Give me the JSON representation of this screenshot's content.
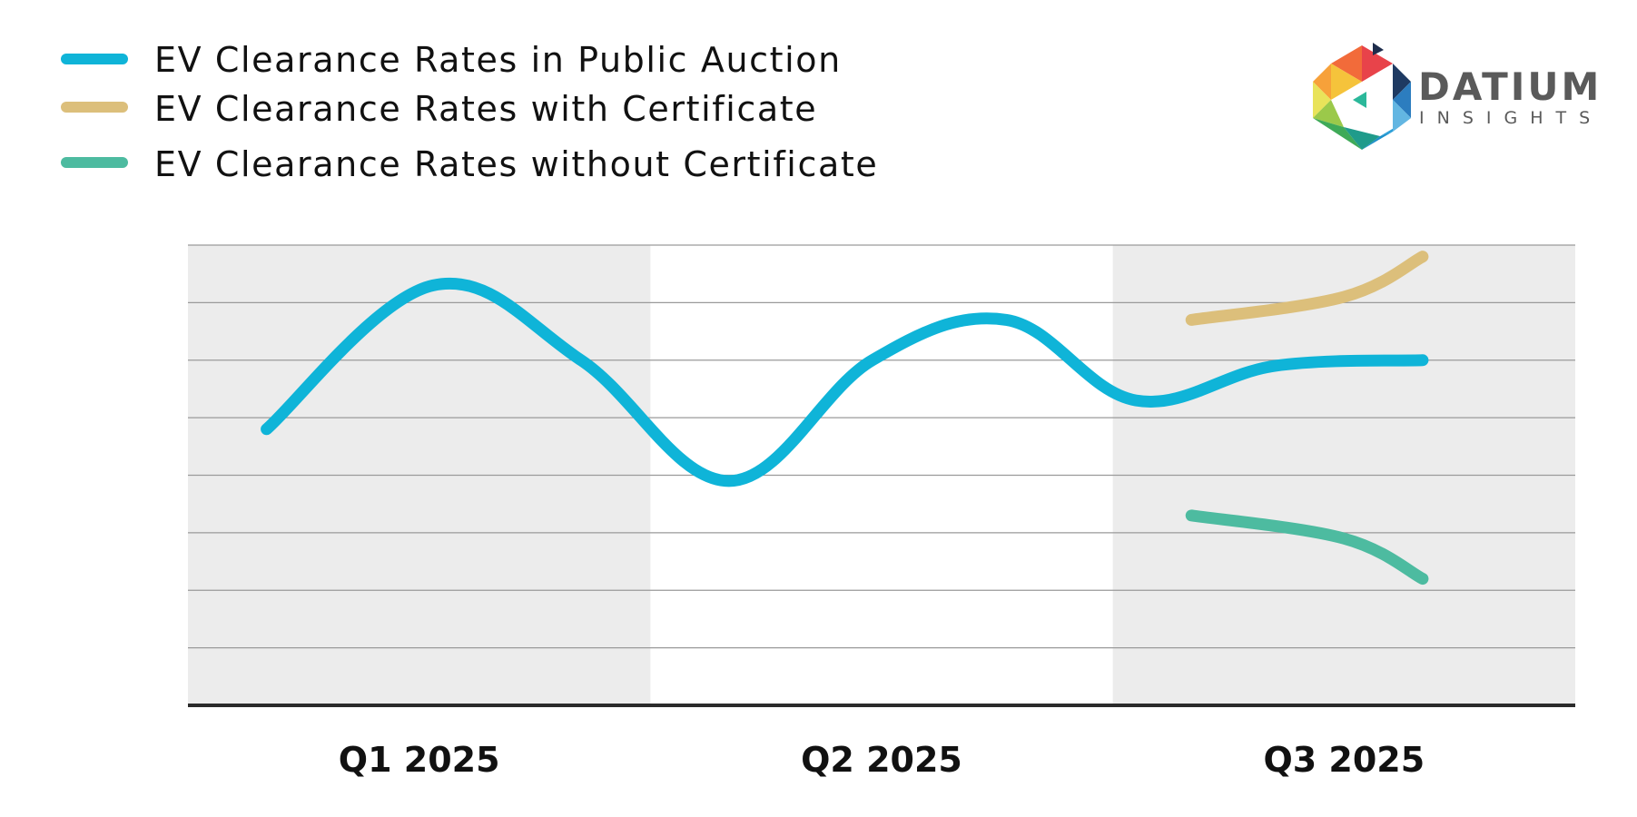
{
  "colors": {
    "band": "#ececec",
    "gridline": "#9a9a9a",
    "baseline": "#2b2b2b",
    "public_auction": "#0fb4d8",
    "with_certificate": "#dcbf7b",
    "without_certificate": "#4dbba0"
  },
  "logo": {
    "brand": "DATIUM",
    "sub": "INSIGHTS"
  },
  "chart_data": {
    "type": "line",
    "title": "",
    "xlabel": "",
    "ylabel": "",
    "categories": [
      "Q1 2025",
      "Q2 2025",
      "Q3 2025"
    ],
    "xlim": [
      0,
      3
    ],
    "ylim": [
      0,
      8
    ],
    "grid": true,
    "y_tick_labels_shown": false,
    "alternating_bands": true,
    "legend_position": "top-left",
    "series": [
      {
        "name": "EV Clearance Rates in Public Auction",
        "color_key": "public_auction",
        "x": [
          0.17,
          0.53,
          0.85,
          1.17,
          1.48,
          1.77,
          2.05,
          2.35,
          2.67
        ],
        "y": [
          4.8,
          7.3,
          6.0,
          3.9,
          6.0,
          6.7,
          5.3,
          5.9,
          6.0
        ]
      },
      {
        "name": "EV Clearance Rates with Certificate",
        "color_key": "with_certificate",
        "x": [
          2.17,
          2.5,
          2.67
        ],
        "y": [
          6.7,
          7.1,
          7.8
        ]
      },
      {
        "name": "EV Clearance Rates without Certificate",
        "color_key": "without_certificate",
        "x": [
          2.17,
          2.5,
          2.67
        ],
        "y": [
          3.3,
          2.9,
          2.2
        ]
      }
    ]
  }
}
